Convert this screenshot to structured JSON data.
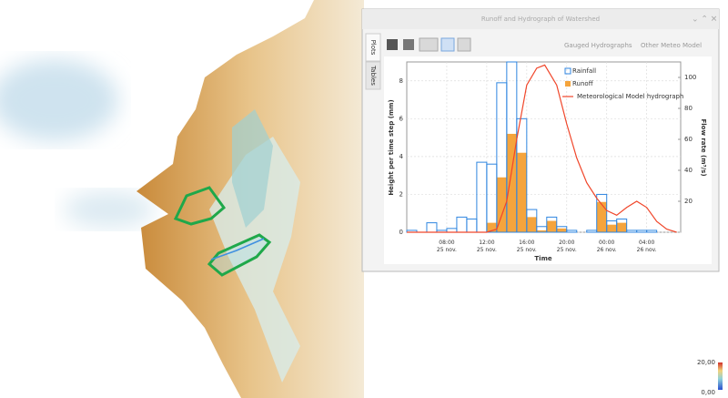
{
  "window": {
    "title": "Runoff and Hydrograph of Watershed",
    "tabs": [
      "Plots",
      "Tables"
    ],
    "dropdowns": [
      "Gauged Hydrographs",
      "Other Meteo Model"
    ]
  },
  "color_scale": {
    "max_label": "20,00",
    "min_label": "0,00"
  },
  "chart_data": {
    "type": "histogram",
    "xlabel": "Time",
    "ylabel": "Height per time step (mm)",
    "y2label": "Flow rate (m³/s)",
    "xlim": [
      4,
      31.4
    ],
    "xticks": [
      {
        "value": 8,
        "label": "08:00\n25 nov."
      },
      {
        "value": 12,
        "label": "12:00\n25 nov."
      },
      {
        "value": 16,
        "label": "16:00\n25 nov."
      },
      {
        "value": 20,
        "label": "20:00\n25 nov."
      },
      {
        "value": 24,
        "label": "00:00\n26 nov."
      },
      {
        "value": 28,
        "label": "04:00\n26 nov."
      }
    ],
    "ylim": [
      0,
      9
    ],
    "yticks": [
      0,
      2,
      4,
      6,
      8
    ],
    "y2lim": [
      0,
      110
    ],
    "y2ticks": [
      20,
      40,
      60,
      80,
      100
    ],
    "grid": true,
    "legend": "upper right",
    "bins": [
      4,
      5,
      6,
      7,
      8,
      9,
      10,
      11,
      12,
      13,
      14,
      15,
      16,
      17,
      18,
      19,
      20,
      21,
      22,
      23,
      24,
      25,
      26,
      27,
      28,
      29,
      30,
      31
    ],
    "series": [
      {
        "name": "Rainfall",
        "color": "#2f86e0",
        "values": [
          0.1,
          0,
          0.5,
          0.1,
          0.2,
          0.8,
          0.7,
          3.7,
          3.6,
          7.9,
          9.0,
          6.0,
          1.2,
          0.3,
          0.8,
          0.3,
          0.1,
          0,
          0.1,
          2.0,
          0.6,
          0.7,
          0.1,
          0.1,
          0.1,
          0,
          0
        ]
      },
      {
        "name": "Runoff",
        "color": "#f5a43c",
        "values": [
          0,
          0,
          0,
          0,
          0,
          0,
          0,
          0,
          0.5,
          2.9,
          5.2,
          4.2,
          0.8,
          0.1,
          0.6,
          0.2,
          0,
          0,
          0,
          1.6,
          0.4,
          0.5,
          0,
          0,
          0,
          0,
          0
        ]
      },
      {
        "name": "Meteorological Model hydrograph",
        "color": "#f0462a",
        "axis": "y2",
        "x": [
          4,
          12,
          13,
          14,
          15,
          16,
          17,
          17.8,
          19,
          20,
          21,
          22,
          23,
          24,
          25,
          26,
          27,
          28,
          29,
          30,
          31
        ],
        "values": [
          0,
          0,
          2,
          20,
          60,
          95,
          106,
          108,
          95,
          70,
          48,
          32,
          22,
          14,
          11,
          16,
          20,
          16,
          7,
          2,
          0
        ]
      }
    ]
  }
}
